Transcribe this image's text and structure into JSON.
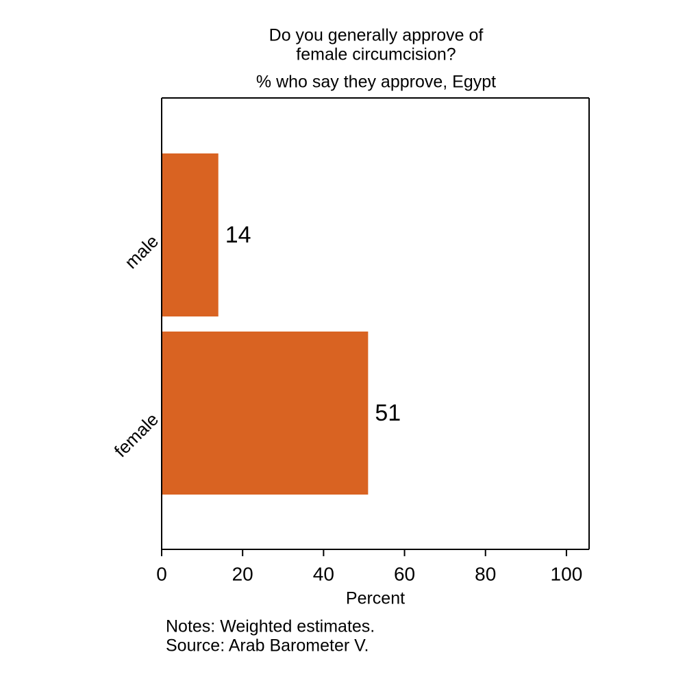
{
  "chart_data": {
    "type": "hbar",
    "title": [
      "Do you generally approve of",
      "female circumcision?"
    ],
    "subtitle": "% who say they approve, Egypt",
    "categories": [
      "male",
      "female"
    ],
    "values": [
      14,
      51
    ],
    "color": "#d96322",
    "xlabel": "Percent",
    "xlim": [
      0,
      105.6
    ],
    "xticks": [
      0,
      20,
      40,
      60,
      80,
      100
    ],
    "notes": "Notes: Weighted estimates.",
    "source": "Source: Arab Barometer V."
  }
}
